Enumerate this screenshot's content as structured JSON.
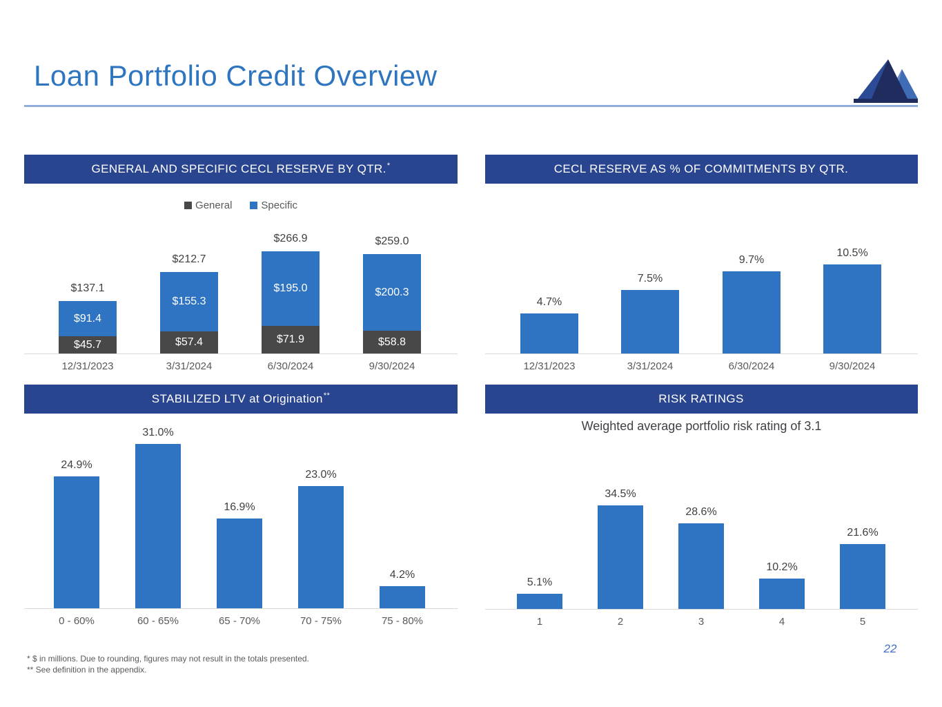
{
  "slide": {
    "title": "Loan Portfolio Credit Overview",
    "page_number": "22",
    "footnote_1": "* $ in millions. Due to rounding, figures may not result in the totals presented.",
    "footnote_2": "** See definition in the appendix."
  },
  "colors": {
    "header_band_navy": "#2A4590",
    "bar_blue": "#2F74C2",
    "bar_dark_gray": "#484848",
    "title_blue": "#2E75C0",
    "underline_light_blue": "#8FAEDC",
    "value_label_gray": "#404040",
    "axis_label_gray": "#595959",
    "baseline_gray": "#D9D9D9",
    "page_number_blue": "#4472C4",
    "logo_navy": "#202C5E",
    "logo_medium_blue": "#2B4B97",
    "logo_light_blue": "#3E6CB5"
  },
  "chart_data": [
    {
      "id": "general_specific_cecl_reserve",
      "type": "bar",
      "stacked": true,
      "title": "GENERAL AND SPECIFIC CECL RESERVE BY QTR.",
      "title_sup": "*",
      "unit": "$ in millions",
      "legend_position": "top",
      "grid": false,
      "ylim": [
        0,
        300
      ],
      "categories": [
        "12/31/2023",
        "3/31/2024",
        "6/30/2024",
        "9/30/2024"
      ],
      "series": [
        {
          "name": "General",
          "color": "#484848",
          "values": [
            45.7,
            57.4,
            71.9,
            58.8
          ],
          "labels": [
            "$45.7",
            "$57.4",
            "$71.9",
            "$58.8"
          ]
        },
        {
          "name": "Specific",
          "color": "#2F74C2",
          "values": [
            91.4,
            155.3,
            195.0,
            200.3
          ],
          "labels": [
            "$91.4",
            "$155.3",
            "$195.0",
            "$200.3"
          ]
        }
      ],
      "totals": [
        137.1,
        212.7,
        266.9,
        259.0
      ],
      "total_labels": [
        "$137.1",
        "$212.7",
        "$266.9",
        "$259.0"
      ]
    },
    {
      "id": "cecl_reserve_pct_of_commitments",
      "type": "bar",
      "stacked": false,
      "title": "CECL RESERVE AS % OF COMMITMENTS BY QTR.",
      "title_sup": "",
      "unit": "percent",
      "grid": false,
      "ylim": [
        0,
        11
      ],
      "categories": [
        "12/31/2023",
        "3/31/2024",
        "6/30/2024",
        "9/30/2024"
      ],
      "values": [
        4.7,
        7.5,
        9.7,
        10.5
      ],
      "labels": [
        "4.7%",
        "7.5%",
        "9.7%",
        "10.5%"
      ]
    },
    {
      "id": "stabilized_ltv_at_origination",
      "type": "bar",
      "stacked": false,
      "title": "STABILIZED LTV at Origination",
      "title_sup": "**",
      "unit": "percent of portfolio",
      "grid": false,
      "ylim": [
        0,
        33
      ],
      "categories": [
        "0 - 60%",
        "60 - 65%",
        "65 - 70%",
        "70 - 75%",
        "75 - 80%"
      ],
      "values": [
        24.9,
        31.0,
        16.9,
        23.0,
        4.2
      ],
      "labels": [
        "24.9%",
        "31.0%",
        "16.9%",
        "23.0%",
        "4.2%"
      ]
    },
    {
      "id": "risk_ratings",
      "type": "bar",
      "stacked": false,
      "title": "RISK RATINGS",
      "title_sup": "",
      "subtitle": "Weighted average portfolio risk rating of 3.1",
      "unit": "percent of portfolio",
      "grid": false,
      "ylim": [
        0,
        36
      ],
      "categories": [
        "1",
        "2",
        "3",
        "4",
        "5"
      ],
      "values": [
        5.1,
        34.5,
        28.6,
        10.2,
        21.6
      ],
      "labels": [
        "5.1%",
        "34.5%",
        "28.6%",
        "10.2%",
        "21.6%"
      ]
    }
  ]
}
